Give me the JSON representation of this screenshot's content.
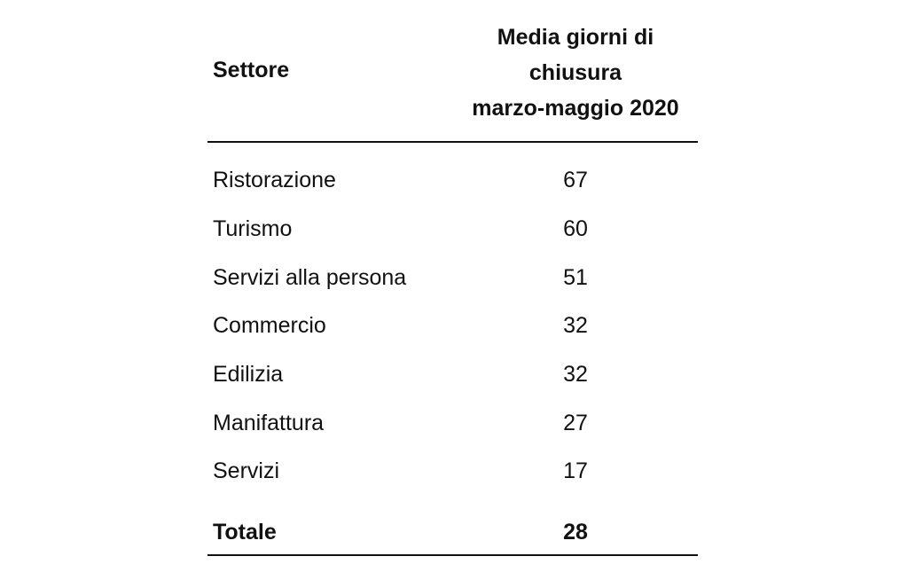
{
  "table": {
    "header": {
      "sector": "Settore",
      "value_lines": [
        "Media giorni di",
        "chiusura",
        "marzo-maggio 2020"
      ]
    },
    "rows": [
      {
        "label": "Ristorazione",
        "value": "67"
      },
      {
        "label": "Turismo",
        "value": "60"
      },
      {
        "label": "Servizi alla persona",
        "value": "51"
      },
      {
        "label": "Commercio",
        "value": "32"
      },
      {
        "label": "Edilizia",
        "value": "32"
      },
      {
        "label": "Manifattura",
        "value": "27"
      },
      {
        "label": "Servizi",
        "value": "17"
      }
    ],
    "total": {
      "label": "Totale",
      "value": "28"
    }
  }
}
